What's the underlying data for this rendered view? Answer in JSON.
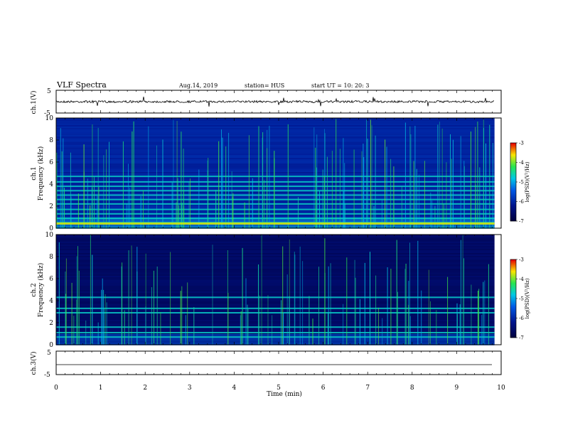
{
  "header": {
    "title": "VLF Spectra",
    "date": "Aug.14, 2019",
    "station": "station= HUS",
    "start": "start  UT  =   10: 20: 3"
  },
  "colors": {
    "spectrogram_bg": "#0a1a6e",
    "line": "#000000"
  },
  "chart_data": [
    {
      "type": "line",
      "id": "ch1",
      "ylabel": "ch.1(V)",
      "ylim": [
        -5,
        5
      ],
      "yticks": [
        "5",
        "-5"
      ],
      "baseline": 0
    },
    {
      "type": "heatmap",
      "id": "ch1-spec",
      "ylabel_top": "ch.1",
      "ylabel": "Frequency  (kHz)",
      "ylim": [
        0,
        10
      ],
      "yticks": [
        "0",
        "2",
        "4",
        "6",
        "8",
        "10"
      ],
      "colorbar": {
        "label": "log(PSD)(V²/Hz)",
        "ticks": [
          "-3",
          "-4",
          "-5",
          "-6",
          "-7"
        ],
        "range": [
          -7,
          -3
        ]
      }
    },
    {
      "type": "heatmap",
      "id": "ch2-spec",
      "ylabel_top": "ch.2",
      "ylabel": "Frequency  (kHz)",
      "ylim": [
        0,
        10
      ],
      "yticks": [
        "0",
        "2",
        "4",
        "6",
        "8",
        "10"
      ],
      "colorbar": {
        "label": "log(PSD)(V²/Hz)",
        "ticks": [
          "-3",
          "-4",
          "-5",
          "-6",
          "-7"
        ],
        "range": [
          -7,
          -3
        ]
      }
    },
    {
      "type": "line",
      "id": "ch3",
      "ylabel": "ch.3(V)",
      "ylim": [
        -5,
        5
      ],
      "yticks": [
        "5",
        "-5"
      ],
      "baseline": 0
    }
  ],
  "xaxis": {
    "label": "Time  (min)",
    "ticks": [
      "0",
      "1",
      "2",
      "3",
      "4",
      "5",
      "6",
      "7",
      "8",
      "9",
      "10"
    ],
    "xlim": [
      0,
      10
    ]
  }
}
